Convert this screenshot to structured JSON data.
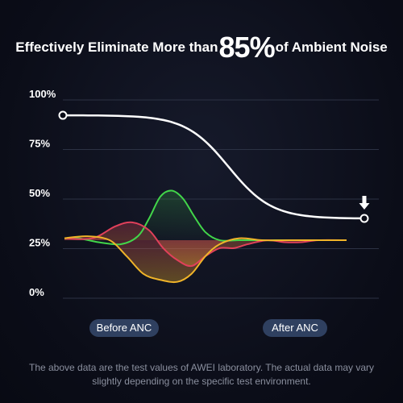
{
  "headline": {
    "prefix": "Effectively Eliminate More than",
    "value": "85%",
    "suffix": "of Ambient Noise"
  },
  "chart_data": {
    "type": "line",
    "yticks": [
      "100%",
      "75%",
      "50%",
      "25%",
      "0%"
    ],
    "ylim": [
      0,
      100
    ],
    "grid": true,
    "reduction_curve": {
      "start": 89,
      "end": 37,
      "color": "#ffffff"
    },
    "waves": [
      {
        "color": "#42d64a",
        "points": [
          [
            0.0,
            27
          ],
          [
            0.05,
            27
          ],
          [
            0.12,
            25
          ],
          [
            0.2,
            24
          ],
          [
            0.26,
            28
          ],
          [
            0.3,
            37
          ],
          [
            0.34,
            48
          ],
          [
            0.38,
            51
          ],
          [
            0.42,
            47
          ],
          [
            0.46,
            38
          ],
          [
            0.5,
            30
          ],
          [
            0.55,
            26
          ],
          [
            0.62,
            26
          ],
          [
            0.7,
            26
          ],
          [
            0.78,
            26
          ],
          [
            0.87,
            26
          ],
          [
            1.0,
            26
          ]
        ]
      },
      {
        "color": "#e0405a",
        "points": [
          [
            0.0,
            27
          ],
          [
            0.1,
            27
          ],
          [
            0.18,
            33
          ],
          [
            0.24,
            35
          ],
          [
            0.3,
            31
          ],
          [
            0.35,
            22
          ],
          [
            0.4,
            16
          ],
          [
            0.45,
            13
          ],
          [
            0.5,
            18
          ],
          [
            0.55,
            22
          ],
          [
            0.6,
            22
          ],
          [
            0.65,
            24
          ],
          [
            0.72,
            26
          ],
          [
            0.78,
            25
          ],
          [
            0.84,
            25
          ],
          [
            0.9,
            26
          ],
          [
            1.0,
            26
          ]
        ]
      },
      {
        "color": "#f0b429",
        "points": [
          [
            0.0,
            27
          ],
          [
            0.08,
            28
          ],
          [
            0.16,
            26
          ],
          [
            0.22,
            18
          ],
          [
            0.28,
            9
          ],
          [
            0.34,
            6
          ],
          [
            0.4,
            5
          ],
          [
            0.45,
            9
          ],
          [
            0.5,
            18
          ],
          [
            0.55,
            24
          ],
          [
            0.62,
            27
          ],
          [
            0.7,
            26
          ],
          [
            0.8,
            26
          ],
          [
            1.0,
            26
          ]
        ]
      }
    ],
    "labels": [
      "Before ANC",
      "After ANC"
    ]
  },
  "footnote": "The above data are the test values of AWEI laboratory. The actual data may vary slightly depending on the specific test environment."
}
